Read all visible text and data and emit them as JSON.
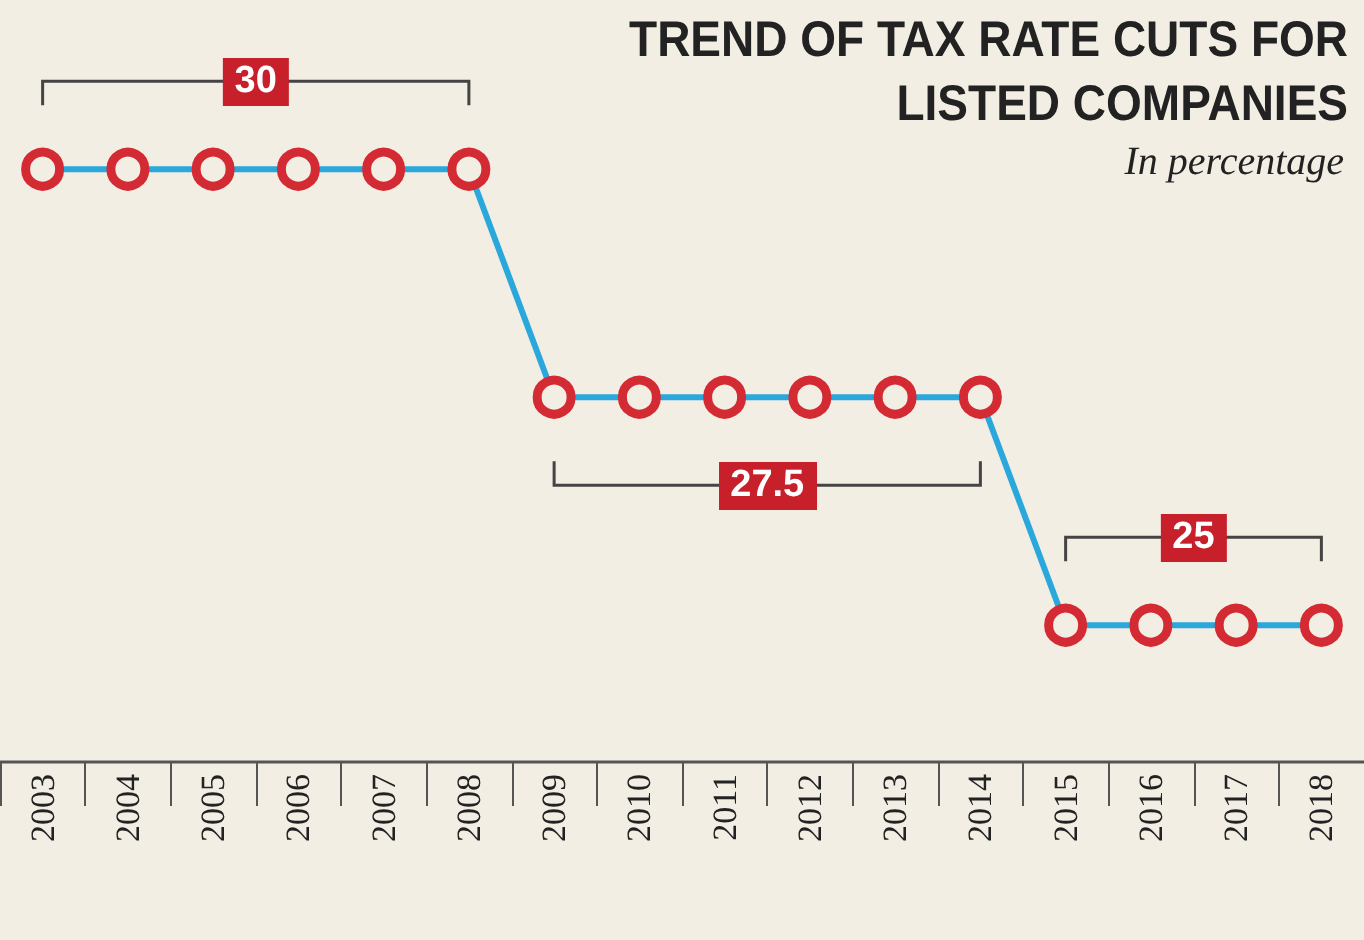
{
  "chart_data": {
    "type": "line",
    "title": "TREND OF TAX RATE CUTS FOR LISTED COMPANIES",
    "subtitle": "In percentage",
    "categories": [
      "2003",
      "2004",
      "2005",
      "2006",
      "2007",
      "2008",
      "2009",
      "2010",
      "2011",
      "2012",
      "2013",
      "2014",
      "2015",
      "2016",
      "2017",
      "2018"
    ],
    "series": [
      {
        "color": "#2aa8dc",
        "values": [
          30,
          30,
          30,
          30,
          30,
          30,
          27.5,
          27.5,
          27.5,
          27.5,
          27.5,
          27.5,
          25,
          25,
          25,
          25
        ],
        "value_labels": [
          null,
          null,
          "30",
          null,
          null,
          null,
          null,
          null,
          "27.5",
          null,
          null,
          null,
          null,
          "25",
          null,
          null
        ]
      }
    ],
    "tick_labels": "x",
    "marker": "circle",
    "line_style": "solid"
  }
}
